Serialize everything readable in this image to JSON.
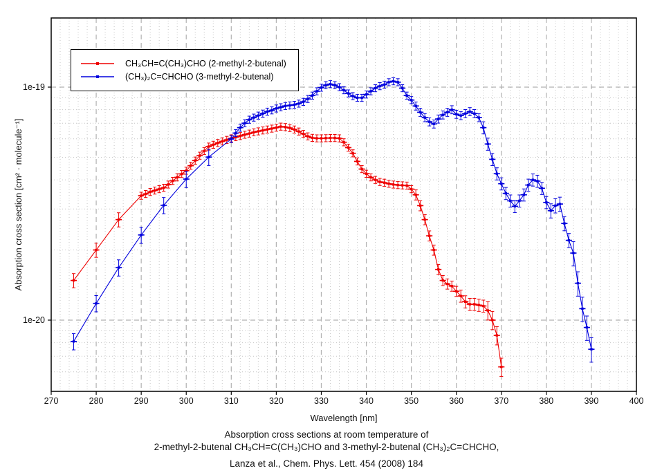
{
  "caption": {
    "line1": "Absorption cross sections at room temperature of",
    "line2": "2-methyl-2-butenal CH₃CH=C(CH₃)CHO and 3-methyl-2-butenal (CH₃)₂C=CHCHO,",
    "line3": "Lanza et al., Chem. Phys. Lett. 454 (2008) 184"
  },
  "chart_data": {
    "type": "line",
    "title": "",
    "xlabel": "Wavelength [nm]",
    "ylabel": "Absorption cross section [cm² · molecule⁻¹]",
    "x_axis": {
      "min": 270,
      "max": 400,
      "major_ticks": [
        270,
        280,
        290,
        300,
        310,
        320,
        330,
        340,
        350,
        360,
        370,
        380,
        390,
        400
      ],
      "minor_step_nm": 2
    },
    "y_axis": {
      "scale": "log",
      "min": "5e-21",
      "max": "2e-19",
      "major_ticks": [
        {
          "value_1e20": 10,
          "label": "1e-19"
        },
        {
          "value_1e20": 1,
          "label": "1e-20"
        }
      ],
      "minor_gridline_values_1e20": [
        0.6,
        0.7,
        0.8,
        0.9,
        2,
        3,
        4,
        5,
        6,
        7,
        8,
        9
      ],
      "unit_note": "series y values are in units of 1e-20 cm2/molecule"
    },
    "grid": {
      "minor_style": "dotted",
      "major_style": "dashed",
      "minor_color": "#c6c6c6",
      "major_color": "#b0b0b0"
    },
    "legend_position": "top-left",
    "x_error_nm": 0.7,
    "series": [
      {
        "name": "CH₃CH=C(CH₃)CHO (2-methyl-2-butenal)",
        "color": "#ee0000",
        "err_pct_ranges": [
          [
            274,
            286,
            7
          ],
          [
            289,
            350,
            3.5
          ],
          [
            350.5,
            360,
            5
          ],
          [
            360.5,
            366,
            6
          ],
          [
            366.5,
            371,
            9
          ]
        ],
        "x": [
          275,
          280,
          285,
          290,
          291,
          292,
          293,
          294,
          295,
          296,
          297,
          298,
          299,
          300,
          301,
          302,
          303,
          304,
          305,
          306,
          307,
          308,
          309,
          310,
          311,
          312,
          313,
          314,
          315,
          316,
          317,
          318,
          319,
          320,
          321,
          322,
          323,
          324,
          325,
          326,
          327,
          328,
          329,
          330,
          331,
          332,
          333,
          334,
          335,
          336,
          337,
          338,
          339,
          340,
          341,
          342,
          343,
          344,
          345,
          346,
          347,
          348,
          349,
          350,
          351,
          352,
          353,
          354,
          355,
          356,
          357,
          358,
          359,
          360,
          361,
          362,
          363,
          364,
          365,
          366,
          367,
          368,
          369,
          370
        ],
        "y": [
          1.48,
          2.0,
          2.7,
          3.42,
          3.48,
          3.55,
          3.6,
          3.65,
          3.7,
          3.82,
          3.96,
          4.1,
          4.24,
          4.38,
          4.6,
          4.84,
          5.08,
          5.32,
          5.56,
          5.66,
          5.76,
          5.85,
          5.94,
          6.03,
          6.1,
          6.17,
          6.25,
          6.32,
          6.4,
          6.46,
          6.52,
          6.58,
          6.64,
          6.7,
          6.77,
          6.74,
          6.68,
          6.58,
          6.45,
          6.3,
          6.15,
          6.06,
          6.03,
          6.03,
          6.04,
          6.05,
          6.05,
          6.03,
          5.8,
          5.5,
          5.2,
          4.8,
          4.45,
          4.25,
          4.1,
          4.0,
          3.92,
          3.89,
          3.85,
          3.82,
          3.8,
          3.79,
          3.78,
          3.65,
          3.45,
          3.1,
          2.7,
          2.3,
          2.0,
          1.65,
          1.48,
          1.43,
          1.4,
          1.33,
          1.27,
          1.2,
          1.17,
          1.17,
          1.16,
          1.15,
          1.1,
          1.0,
          0.86,
          0.63
        ]
      },
      {
        "name": "(CH₃)₂C=CHCHO (3-methyl-2-butenal)",
        "color": "#0000dd",
        "err_pct_ranges": [
          [
            274,
            306,
            8
          ],
          [
            309,
            350,
            3.5
          ],
          [
            350.5,
            365,
            4
          ],
          [
            365.5,
            380,
            6
          ],
          [
            380.5,
            385,
            7
          ],
          [
            385.5,
            391,
            12
          ]
        ],
        "x": [
          275,
          280,
          285,
          290,
          295,
          300,
          305,
          310,
          311,
          312,
          313,
          314,
          315,
          316,
          317,
          318,
          319,
          320,
          321,
          322,
          323,
          324,
          325,
          326,
          327,
          328,
          329,
          330,
          331,
          332,
          333,
          334,
          335,
          336,
          337,
          338,
          339,
          340,
          341,
          342,
          343,
          344,
          345,
          346,
          347,
          348,
          349,
          350,
          351,
          352,
          353,
          354,
          355,
          356,
          357,
          358,
          359,
          360,
          361,
          362,
          363,
          364,
          365,
          366,
          367,
          368,
          369,
          370,
          371,
          372,
          373,
          374,
          375,
          376,
          377,
          378,
          379,
          380,
          381,
          382,
          383,
          384,
          385,
          386,
          387,
          388,
          389,
          390
        ],
        "y": [
          0.81,
          1.18,
          1.68,
          2.32,
          3.11,
          4.03,
          5.01,
          5.99,
          6.35,
          6.7,
          7.0,
          7.25,
          7.4,
          7.55,
          7.7,
          7.85,
          7.95,
          8.1,
          8.2,
          8.3,
          8.35,
          8.4,
          8.5,
          8.65,
          8.9,
          9.2,
          9.6,
          9.95,
          10.2,
          10.3,
          10.2,
          10.0,
          9.7,
          9.4,
          9.15,
          9.0,
          9.0,
          9.3,
          9.6,
          9.9,
          10.1,
          10.25,
          10.5,
          10.6,
          10.5,
          9.9,
          9.2,
          8.8,
          8.3,
          7.8,
          7.4,
          7.1,
          6.95,
          7.3,
          7.6,
          7.8,
          8.0,
          7.65,
          7.55,
          7.7,
          7.85,
          7.7,
          7.4,
          6.7,
          5.7,
          4.9,
          4.25,
          3.85,
          3.5,
          3.25,
          3.08,
          3.25,
          3.45,
          3.8,
          4.0,
          3.95,
          3.68,
          3.2,
          2.95,
          3.1,
          3.15,
          2.6,
          2.2,
          1.94,
          1.44,
          1.12,
          0.93,
          0.75
        ]
      }
    ]
  }
}
